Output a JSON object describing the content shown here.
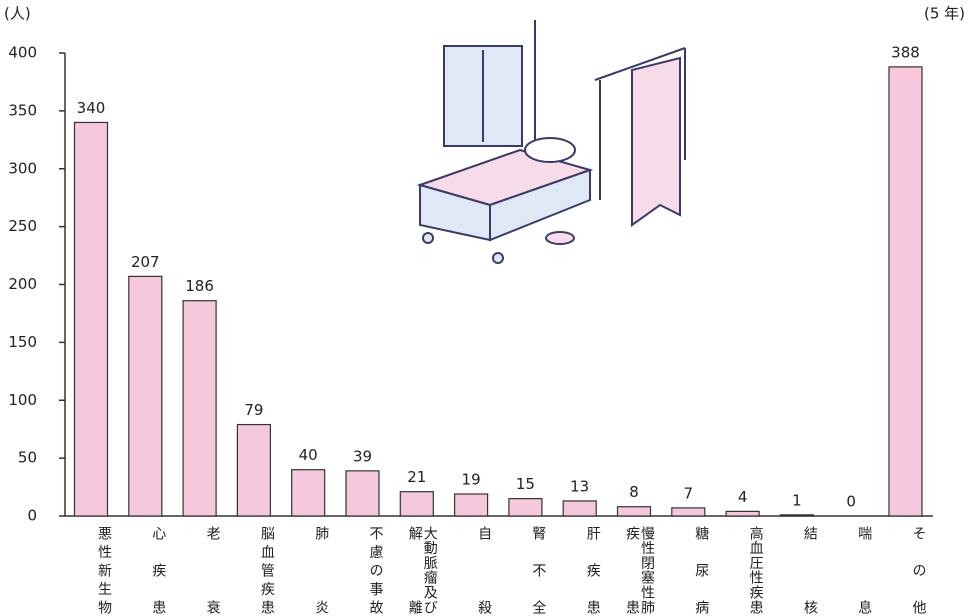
{
  "chart_data": {
    "type": "bar",
    "y_unit": "(人)",
    "note": "(5 年)",
    "categories": [
      "悪性新生物",
      "心疾患",
      "老衰",
      "脳血管疾患",
      "肺炎",
      "不慮の事故",
      "大動脈瘤及び解離",
      "自殺",
      "腎不全",
      "肝疾患",
      "慢性閉塞性肺疾患",
      "糖尿病",
      "高血圧性疾患",
      "結核",
      "喘息",
      "その他"
    ],
    "values": [
      340,
      207,
      186,
      79,
      40,
      39,
      21,
      19,
      15,
      13,
      8,
      7,
      4,
      1,
      0,
      388
    ],
    "color": "#f6c8dd",
    "ylim": [
      0,
      400
    ],
    "yticks": [
      0,
      50,
      100,
      150,
      200,
      250,
      300,
      350,
      400
    ]
  }
}
